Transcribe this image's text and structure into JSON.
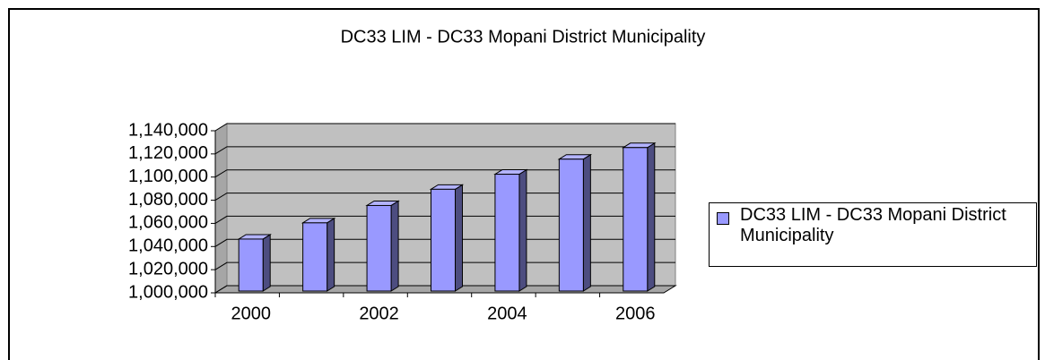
{
  "chart_data": {
    "type": "bar3d",
    "title": "DC33 LIM - DC33 Mopani District Municipality",
    "categories": [
      "2000",
      null,
      "2002",
      null,
      "2004",
      null,
      "2006"
    ],
    "series": [
      {
        "name": "DC33 LIM - DC33 Mopani District Municipality",
        "color": "#9999ff",
        "values": [
          1048000,
          1062000,
          1077000,
          1091000,
          1104000,
          1117000,
          1127000
        ]
      }
    ],
    "ylim": [
      1000000,
      1140000
    ],
    "yticks": [
      {
        "value": 1000000,
        "label": "1,000,000"
      },
      {
        "value": 1020000,
        "label": "1,020,000"
      },
      {
        "value": 1040000,
        "label": "1,040,000"
      },
      {
        "value": 1060000,
        "label": "1,060,000"
      },
      {
        "value": 1080000,
        "label": "1,080,000"
      },
      {
        "value": 1100000,
        "label": "1,100,000"
      },
      {
        "value": 1120000,
        "label": "1,120,000"
      },
      {
        "value": 1140000,
        "label": "1,140,000"
      }
    ],
    "grid": true,
    "legend": "right"
  }
}
